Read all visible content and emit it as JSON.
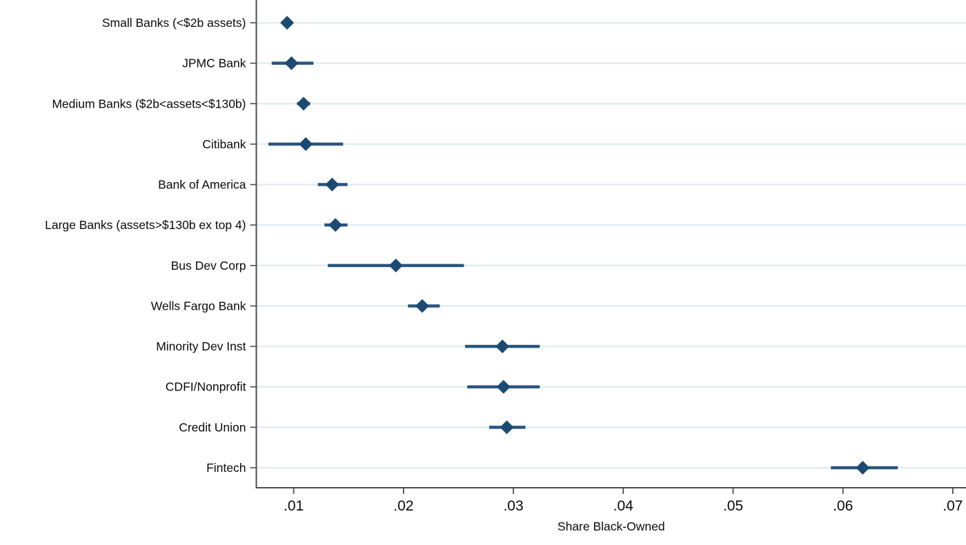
{
  "chart_data": {
    "type": "scatter",
    "subtype": "coefficient-plot-horizontal-ci",
    "title": "",
    "xlabel": "Share Black-Owned",
    "ylabel": "",
    "xlim": [
      0.0066,
      0.0712
    ],
    "x_ticks": [
      0.01,
      0.02,
      0.03,
      0.04,
      0.05,
      0.06,
      0.07
    ],
    "x_tick_labels": [
      ".01",
      ".02",
      ".03",
      ".04",
      ".05",
      ".06",
      ".07"
    ],
    "grid": "horizontal-per-category",
    "legend": "none",
    "categories": [
      "Small Banks (<$2b assets)",
      "JPMC Bank",
      "Medium Banks ($2b<assets<$130b)",
      "Citibank",
      "Bank of America",
      "Large Banks (assets>$130b ex top 4)",
      "Bus Dev Corp",
      "Wells Fargo Bank",
      "Minority Dev Inst",
      "CDFI/Nonprofit",
      "Credit Union",
      "Fintech"
    ],
    "series": [
      {
        "name": "Share Black-Owned estimate",
        "marker": "diamond",
        "values": [
          0.0094,
          0.0098,
          0.0109,
          0.0111,
          0.0135,
          0.0138,
          0.0193,
          0.0217,
          0.029,
          0.0291,
          0.0294,
          0.0618
        ],
        "ci_low": [
          0.009,
          0.008,
          0.0103,
          0.0077,
          0.0122,
          0.0128,
          0.0131,
          0.0204,
          0.0256,
          0.0258,
          0.0278,
          0.0589
        ],
        "ci_high": [
          0.0099,
          0.0118,
          0.0115,
          0.0145,
          0.0149,
          0.0149,
          0.0255,
          0.0233,
          0.0324,
          0.0324,
          0.0311,
          0.065
        ]
      }
    ],
    "colors": {
      "marker": "#1d4a73",
      "ci_line": "#2a5580",
      "gridline": "#e3edf0",
      "axis": "#4d4d4d",
      "text": "#0a0a0a",
      "background": "#ffffff"
    }
  }
}
